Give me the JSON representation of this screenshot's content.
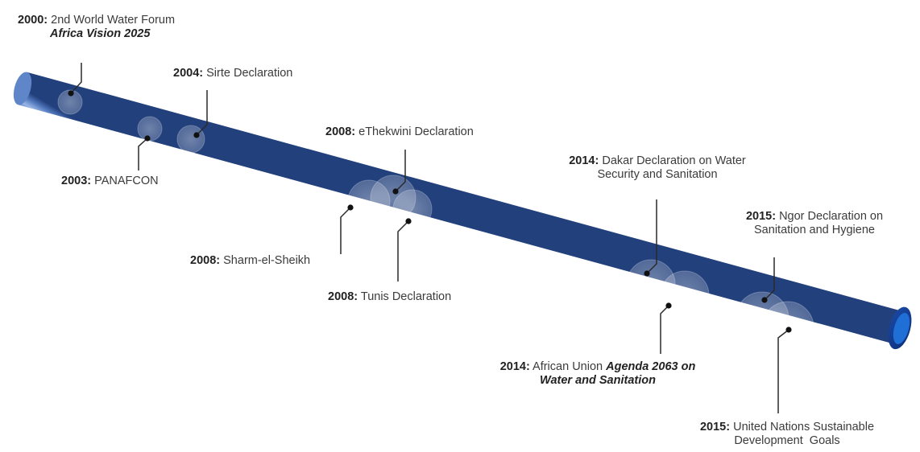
{
  "milestones": [
    {
      "year": "2000",
      "line1": "2nd World Water Forum",
      "line2_em": "Africa Vision 2025"
    },
    {
      "year": "2004",
      "line1": "Sirte Declaration"
    },
    {
      "year": "2003",
      "line1": "PANAFCON"
    },
    {
      "year": "2008",
      "line1": "eThekwini Declaration"
    },
    {
      "year": "2008",
      "line1": "Sharm-el-Sheikh"
    },
    {
      "year": "2008",
      "line1": "Tunis Declaration"
    },
    {
      "year": "2014",
      "line1": "Dakar Declaration on Water",
      "line2": "Security and Sanitation"
    },
    {
      "year": "2014",
      "line1": "African Union ",
      "line1_em": "Agenda 2063 on",
      "line2_em": "Water and Sanitation"
    },
    {
      "year": "2015",
      "line1": "Ngor Declaration on",
      "line2": "Sanitation and Hygiene"
    },
    {
      "year": "2015",
      "line1": "United Nations Sustainable",
      "line2": "Development  Goals"
    }
  ],
  "colors": {
    "pipe_dark": "#2d4a86",
    "pipe_mid": "#5c82c6",
    "pipe_light": "#a9c1ea",
    "opening": "#1f6fd6",
    "marker": "#111111"
  }
}
